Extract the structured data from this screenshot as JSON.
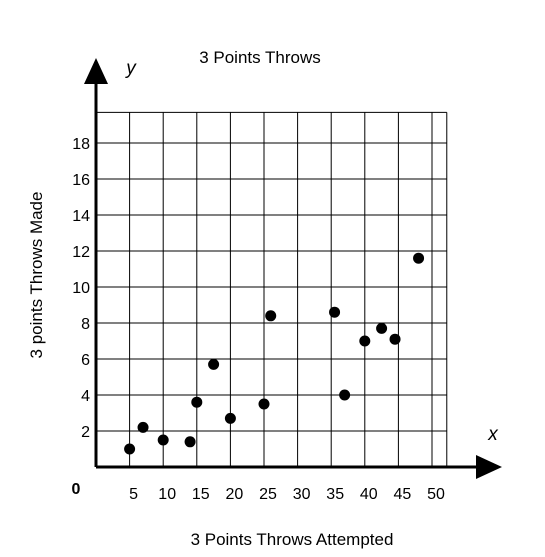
{
  "chart_data": {
    "type": "scatter",
    "title": "3 Points Throws",
    "xlabel": "3 Points Throws Attempted",
    "ylabel": "3 points Throws Made",
    "x_axis_var": "x",
    "y_axis_var": "y",
    "origin_label": "0",
    "xlim": [
      0,
      50
    ],
    "ylim": [
      0,
      20
    ],
    "x_ticks": [
      5,
      10,
      15,
      20,
      25,
      30,
      35,
      40,
      45,
      50
    ],
    "x_tick_labels": [
      "5",
      "10",
      "15",
      "20",
      "25",
      "30",
      "35",
      "40",
      "45",
      "50"
    ],
    "y_ticks": [
      2,
      4,
      6,
      8,
      10,
      12,
      14,
      16,
      18
    ],
    "y_tick_labels": [
      "2",
      "4",
      "6",
      "8",
      "10",
      "12",
      "14",
      "16",
      "18"
    ],
    "grid": true,
    "legend": "none",
    "point_color": "#000000",
    "points": [
      {
        "x": 5,
        "y": 1
      },
      {
        "x": 7,
        "y": 2.2
      },
      {
        "x": 10,
        "y": 1.5
      },
      {
        "x": 14,
        "y": 1.4
      },
      {
        "x": 15,
        "y": 3.6
      },
      {
        "x": 17.5,
        "y": 5.7
      },
      {
        "x": 20,
        "y": 2.7
      },
      {
        "x": 25,
        "y": 3.5
      },
      {
        "x": 26,
        "y": 8.4
      },
      {
        "x": 35.5,
        "y": 8.6
      },
      {
        "x": 37,
        "y": 4
      },
      {
        "x": 40,
        "y": 7
      },
      {
        "x": 42.5,
        "y": 7.7
      },
      {
        "x": 44.5,
        "y": 7.1
      },
      {
        "x": 48,
        "y": 11.6
      }
    ]
  }
}
